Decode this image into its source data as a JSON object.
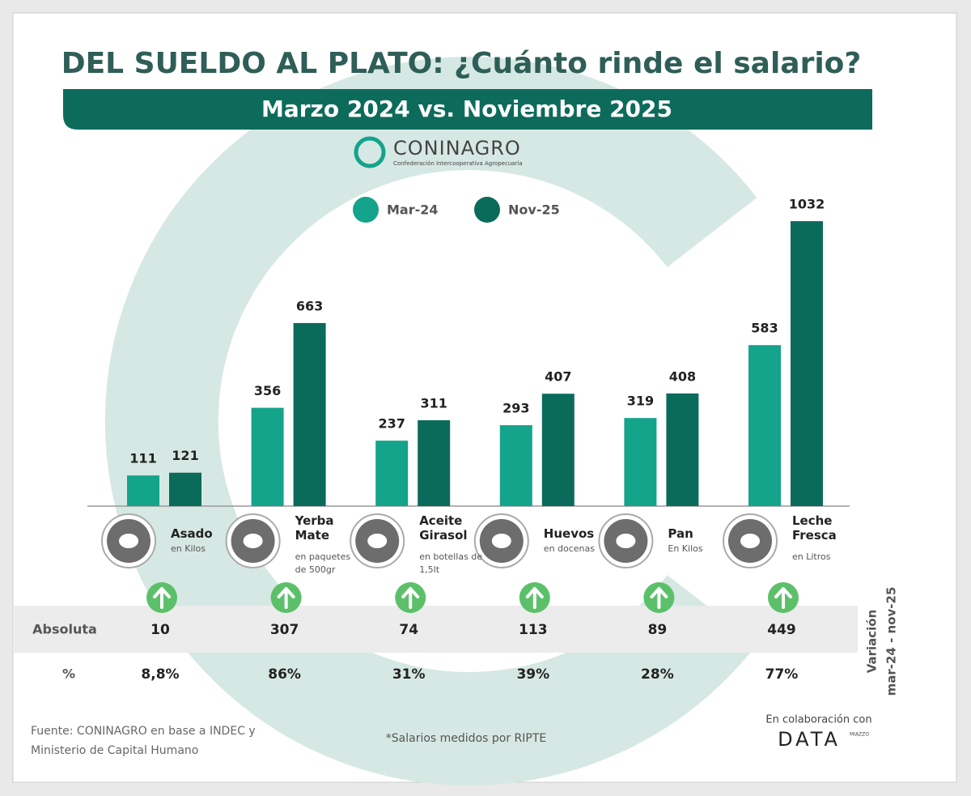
{
  "title": "DEL SUELDO AL PLATO: ¿Cuánto rinde el salario?",
  "subtitle": "Marzo 2024 vs. Noviembre 2025",
  "logo": {
    "name": "CONINAGRO",
    "tagline": "Confederación Intercooperativa Agropecuaria"
  },
  "chart_data": {
    "type": "bar",
    "categories": [
      "Asado",
      "Yerba Mate",
      "Aceite Girasol",
      "Huevos",
      "Pan",
      "Leche Fresca"
    ],
    "units": [
      "en Kilos",
      "en paquetes de 500gr",
      "en botellas de 1,5lt",
      "en docenas",
      "En Kilos",
      "en Litros"
    ],
    "series": [
      {
        "name": "Mar-24",
        "color": "#14a38b",
        "values": [
          111,
          356,
          237,
          293,
          319,
          583
        ]
      },
      {
        "name": "Nov-25",
        "color": "#0b6b5b",
        "values": [
          121,
          663,
          311,
          407,
          408,
          1032
        ]
      }
    ]
  },
  "variation": {
    "label": "Variación",
    "period": "mar-24 - nov-25",
    "rows": [
      {
        "name": "Absoluta",
        "values": [
          "10",
          "307",
          "74",
          "113",
          "89",
          "449"
        ]
      },
      {
        "name": "%",
        "values": [
          "8,8%",
          "86%",
          "31%",
          "39%",
          "28%",
          "77%"
        ]
      }
    ]
  },
  "source": "Fuente: CONINAGRO en base a INDEC y Ministerio de Capital Humano",
  "note": "*Salarios medidos por RIPTE",
  "collaboration": {
    "text": "En colaboración con",
    "name": "DATA",
    "by": "MIAZZO"
  }
}
